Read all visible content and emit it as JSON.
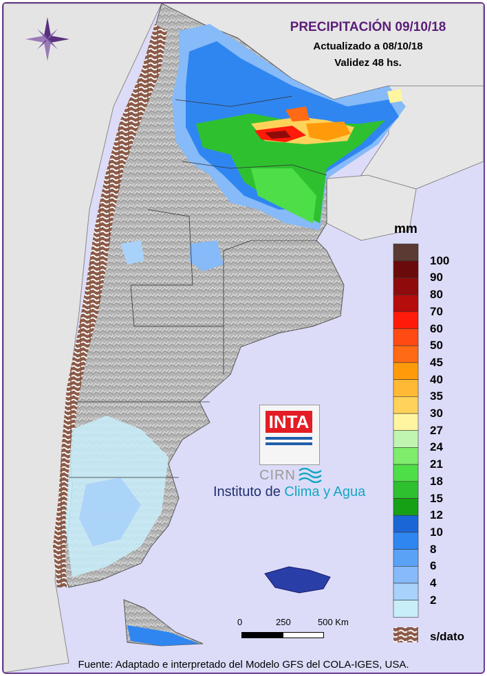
{
  "header": {
    "title": "PRECIPITACIÓN 09/10/18",
    "updated": "Actualizado a 08/10/18",
    "validity": "Validez 48 hs."
  },
  "legend": {
    "unit": "mm",
    "levels": [
      {
        "label": "100",
        "color": "#6b0a0a"
      },
      {
        "label": "90",
        "color": "#8f0b0b"
      },
      {
        "label": "80",
        "color": "#b50c0c"
      },
      {
        "label": "70",
        "color": "#ff1a0a"
      },
      {
        "label": "60",
        "color": "#ff4a14"
      },
      {
        "label": "50",
        "color": "#ff6a14"
      },
      {
        "label": "45",
        "color": "#ff9b0a"
      },
      {
        "label": "40",
        "color": "#ffb935"
      },
      {
        "label": "35",
        "color": "#ffd35a"
      },
      {
        "label": "30",
        "color": "#fff5a0"
      },
      {
        "label": "27",
        "color": "#bff5b0"
      },
      {
        "label": "24",
        "color": "#80ec6c"
      },
      {
        "label": "21",
        "color": "#4ede48"
      },
      {
        "label": "18",
        "color": "#2fc030"
      },
      {
        "label": "15",
        "color": "#16a016"
      },
      {
        "label": "12",
        "color": "#1a66d6"
      },
      {
        "label": "10",
        "color": "#2f86f0"
      },
      {
        "label": "8",
        "color": "#5aa2f5"
      },
      {
        "label": "6",
        "color": "#86baf8"
      },
      {
        "label": "4",
        "color": "#a8d2fa"
      },
      {
        "label": "2",
        "color": "#c8eefa"
      }
    ],
    "top_color": "#5a3a32",
    "nodata_label": "s/dato",
    "nodata_color": "#8b5a48"
  },
  "scale": {
    "ticks": [
      "0",
      "250",
      "500 Km"
    ]
  },
  "logo": {
    "inta": "INTA",
    "cirn": "CIRN",
    "institute_prefix": "Instituto de ",
    "institute_highlight": "Clima y Agua"
  },
  "footer": "Fuente: Adaptado e interpretado del Modelo GFS del COLA-IGES, USA.",
  "map": {
    "ocean_color": "#dcdcf8",
    "foreign_land_color": "#e6e6e6",
    "terrain_color": "#b7b7b7"
  }
}
